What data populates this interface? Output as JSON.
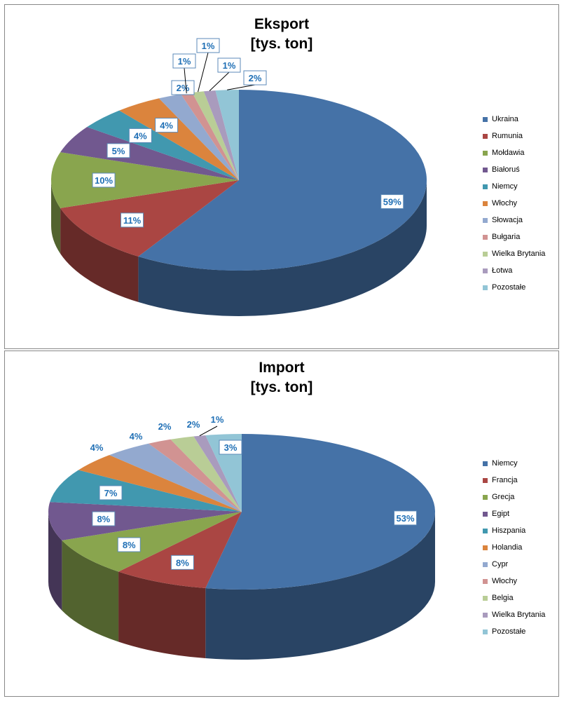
{
  "chart_data": [
    {
      "type": "pie",
      "title": "Eksport",
      "subtitle": "[tys. ton]",
      "categories": [
        "Ukraina",
        "Rumunia",
        "Mołdawia",
        "Białoruś",
        "Niemcy",
        "Włochy",
        "Słowacja",
        "Bułgaria",
        "Wielka Brytania",
        "Łotwa",
        "Pozostałe"
      ],
      "values": [
        59,
        11,
        10,
        5,
        4,
        4,
        2,
        1,
        1,
        1,
        2
      ],
      "labels": [
        "59%",
        "11%",
        "10%",
        "5%",
        "4%",
        "4%",
        "2%",
        "1%",
        "1%",
        "1%",
        "2%"
      ],
      "legend": "right"
    },
    {
      "type": "pie",
      "title": "Import",
      "subtitle": "[tys. ton]",
      "categories": [
        "Niemcy",
        "Francja",
        "Grecja",
        "Egipt",
        "Hiszpania",
        "Holandia",
        "Cypr",
        "Włochy",
        "Belgia",
        "Wielka Brytania",
        "Pozostałe"
      ],
      "values": [
        53,
        8,
        8,
        8,
        7,
        4,
        4,
        2,
        2,
        1,
        3
      ],
      "labels": [
        "53%",
        "8%",
        "8%",
        "8%",
        "7%",
        "4%",
        "4%",
        "2%",
        "2%",
        "1%",
        "3%"
      ],
      "legend": "right"
    }
  ],
  "colors": [
    "#4572A7",
    "#AA4643",
    "#89A54E",
    "#71588F",
    "#4198AF",
    "#DB843D",
    "#93A9CF",
    "#D19392",
    "#B9CD96",
    "#A99BBD",
    "#92C5D6"
  ],
  "label_color": "#1F6FB5"
}
